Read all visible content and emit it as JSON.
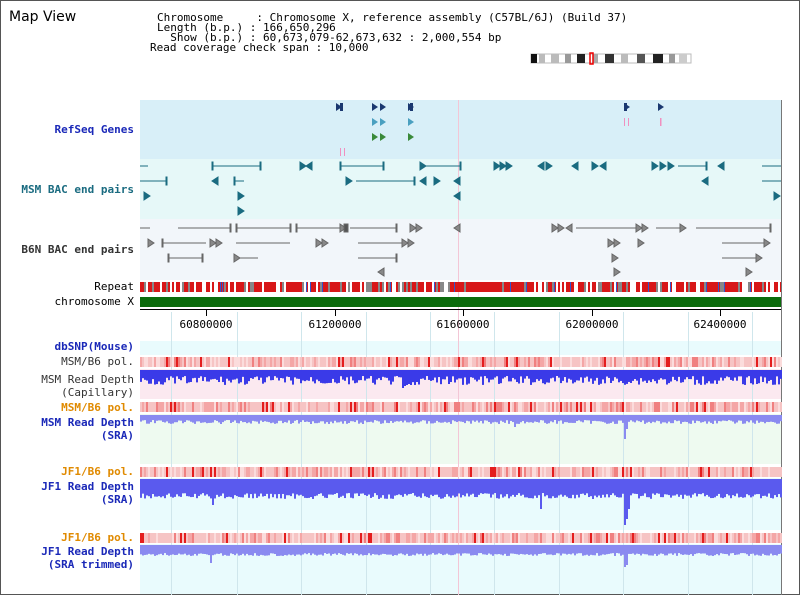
{
  "page": {
    "title": "Map View"
  },
  "info": {
    "chromosome_line": "Chromosome     : Chromosome X, reference assembly (C57BL/6J) (Build 37)",
    "length_line": "Length (b.p.) : 166,650,296",
    "show_line": "  Show (b.p.) : 60,673,079-62,673,632 : 2,000,554 bp",
    "coverage_line": "Read coverage check span : 10,000"
  },
  "tracks": {
    "refseq_genes": "RefSeq Genes",
    "msm_bac": "MSM BAC end pairs",
    "b6n_bac": "B6N BAC end pairs",
    "repeat": "Repeat",
    "chromosome": "chromosome X",
    "dbsnp": "dbSNP(Mouse)",
    "msm_b6_pol_1": "MSM/B6 pol.",
    "msm_read_depth_cap": "MSM Read Depth\n(Capillary)",
    "msm_b6_pol_2": "MSM/B6 pol.",
    "msm_read_depth_sra": "MSM Read Depth\n(SRA)",
    "jf1_b6_pol_1": "JF1/B6 pol.",
    "jf1_read_depth_sra": "JF1 Read Depth\n(SRA)",
    "jf1_b6_pol_2": "JF1/B6 pol.",
    "jf1_read_depth_trim": "JF1 Read Depth\n(SRA trimmed)"
  },
  "axis": {
    "ticks": [
      "60800000",
      "61200000",
      "61600000",
      "62000000",
      "62400000"
    ]
  },
  "colors": {
    "refseq_band": "#d8eff8",
    "msm_band": "#e6f8f8",
    "b6n_band": "#f2f6fa",
    "pink_band": "#fbe9f0",
    "green_band": "#eefaf0",
    "light_blue_band": "#e9fbfd",
    "depth_blue": "#3a3ae8",
    "depth_purple": "#8a8af0",
    "chrom_green": "#0b6b0b"
  }
}
